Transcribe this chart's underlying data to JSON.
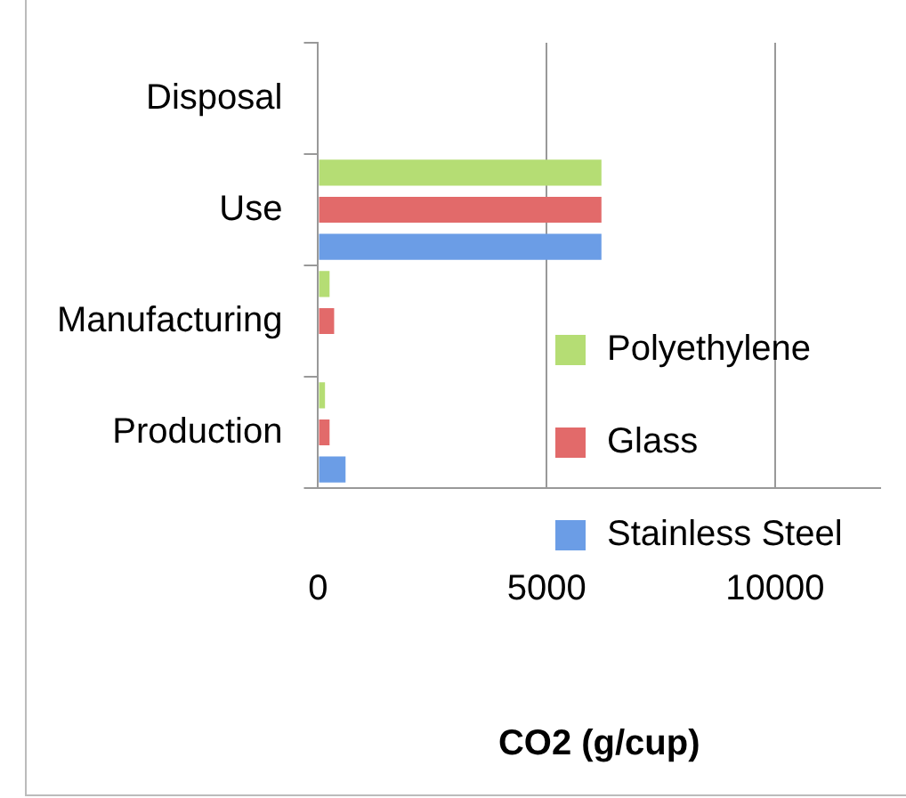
{
  "chart_data": {
    "type": "bar",
    "orientation": "horizontal",
    "xlabel": "CO2 (g/cup)",
    "categories": [
      "Disposal",
      "Use",
      "Manufacturing",
      "Production"
    ],
    "series": [
      {
        "name": "Polyethylene",
        "color": "#b5dd74",
        "values": [
          0,
          6200,
          250,
          150
        ]
      },
      {
        "name": "Glass",
        "color": "#e26a6a",
        "values": [
          0,
          6200,
          350,
          250
        ]
      },
      {
        "name": "Stainless Steel",
        "color": "#6b9de6",
        "values": [
          0,
          6200,
          null,
          600
        ]
      }
    ],
    "xlim": [
      0,
      12300
    ],
    "xticks": [
      0,
      5000,
      10000
    ],
    "grid": "x",
    "legend": "right"
  }
}
